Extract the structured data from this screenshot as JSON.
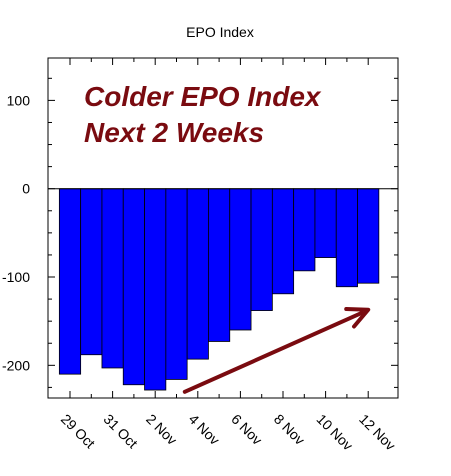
{
  "chart_data": {
    "type": "bar",
    "title": "EPO Index",
    "xlabel": "",
    "ylabel": "",
    "categories": [
      "29 Oct",
      "30 Oct",
      "31 Oct",
      "1 Nov",
      "2 Nov",
      "3 Nov",
      "4 Nov",
      "5 Nov",
      "6 Nov",
      "7 Nov",
      "8 Nov",
      "9 Nov",
      "10 Nov",
      "11 Nov",
      "12 Nov"
    ],
    "values": [
      -210,
      -188,
      -203,
      -222,
      -228,
      -216,
      -193,
      -173,
      -160,
      -138,
      -119,
      -93,
      -78,
      -111,
      -107
    ],
    "x_tick_labels": [
      "29 Oct",
      "31 Oct",
      "2 Nov",
      "4 Nov",
      "6 Nov",
      "8 Nov",
      "10 Nov",
      "12 Nov"
    ],
    "y_ticks": [
      100,
      0,
      -100,
      -200
    ],
    "y_tick_labels": [
      "100",
      "0",
      "-100",
      "-200"
    ],
    "ylim": [
      -237,
      148
    ],
    "grid": false,
    "bar_color": "#0000ff",
    "annotations": {
      "line1": "Colder EPO Index",
      "line2": "Next 2 Weeks",
      "color": "#7a0b10",
      "arrow": {
        "from_category": "4 Nov",
        "from_value": -230,
        "to_category": "12 Nov",
        "to_value": -137
      }
    }
  }
}
